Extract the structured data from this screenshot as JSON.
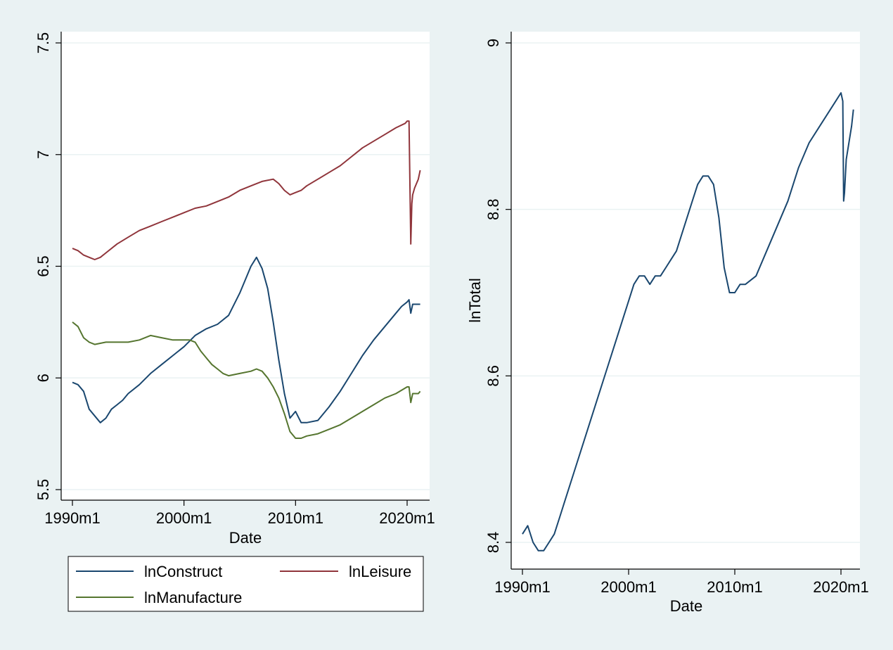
{
  "colors": {
    "background": "#eaf2f3",
    "plot_bg": "#ffffff",
    "grid": "#eaf2f3",
    "lnConstruct": "#1a476f",
    "lnLeisure": "#90353b",
    "lnManufacture": "#55752f"
  },
  "chart_data": [
    {
      "type": "line",
      "title": "",
      "xlabel": "Date",
      "ylabel": "",
      "xlim": [
        1990.0,
        2021.25
      ],
      "ylim": [
        5.5,
        7.5
      ],
      "x_ticks": [
        1990,
        2000,
        2010,
        2020
      ],
      "x_tick_labels": [
        "1990m1",
        "2000m1",
        "2010m1",
        "2020m1"
      ],
      "y_ticks": [
        5.5,
        6,
        6.5,
        7,
        7.5
      ],
      "y_tick_labels": [
        "5.5",
        "6",
        "6.5",
        "7",
        "7.5"
      ],
      "grid": true,
      "legend_position": "bottom",
      "legend": [
        "lnConstruct",
        "lnLeisure",
        "lnManufacture"
      ],
      "series": [
        {
          "name": "lnConstruct",
          "color": "#1a476f",
          "x": [
            1990.0,
            1990.5,
            1991.0,
            1991.5,
            1992.0,
            1992.5,
            1993.0,
            1993.5,
            1994.0,
            1994.5,
            1995.0,
            1996.0,
            1997.0,
            1998.0,
            1999.0,
            2000.0,
            2001.0,
            2002.0,
            2003.0,
            2004.0,
            2005.0,
            2006.0,
            2006.5,
            2007.0,
            2007.5,
            2008.0,
            2008.5,
            2009.0,
            2009.5,
            2010.0,
            2010.5,
            2011.0,
            2012.0,
            2013.0,
            2014.0,
            2015.0,
            2016.0,
            2017.0,
            2018.0,
            2019.0,
            2019.5,
            2020.0,
            2020.17,
            2020.33,
            2020.5,
            2021.0,
            2021.17
          ],
          "values": [
            5.98,
            5.97,
            5.94,
            5.86,
            5.83,
            5.8,
            5.82,
            5.86,
            5.88,
            5.9,
            5.93,
            5.97,
            6.02,
            6.06,
            6.1,
            6.14,
            6.19,
            6.22,
            6.24,
            6.28,
            6.38,
            6.5,
            6.54,
            6.49,
            6.4,
            6.25,
            6.08,
            5.93,
            5.82,
            5.85,
            5.8,
            5.8,
            5.81,
            5.87,
            5.94,
            6.02,
            6.1,
            6.17,
            6.23,
            6.29,
            6.32,
            6.34,
            6.35,
            6.29,
            6.33,
            6.33,
            6.33
          ]
        },
        {
          "name": "lnLeisure",
          "color": "#90353b",
          "x": [
            1990.0,
            1990.5,
            1991.0,
            1991.5,
            1992.0,
            1992.5,
            1993.0,
            1994.0,
            1995.0,
            1996.0,
            1997.0,
            1998.0,
            1999.0,
            2000.0,
            2001.0,
            2002.0,
            2003.0,
            2004.0,
            2005.0,
            2006.0,
            2007.0,
            2008.0,
            2008.5,
            2009.0,
            2009.5,
            2010.0,
            2010.5,
            2011.0,
            2012.0,
            2013.0,
            2014.0,
            2015.0,
            2016.0,
            2017.0,
            2018.0,
            2019.0,
            2019.83,
            2020.0,
            2020.17,
            2020.33,
            2020.42,
            2020.5,
            2020.67,
            2021.0,
            2021.17
          ],
          "values": [
            6.58,
            6.57,
            6.55,
            6.54,
            6.53,
            6.54,
            6.56,
            6.6,
            6.63,
            6.66,
            6.68,
            6.7,
            6.72,
            6.74,
            6.76,
            6.77,
            6.79,
            6.81,
            6.84,
            6.86,
            6.88,
            6.89,
            6.87,
            6.84,
            6.82,
            6.83,
            6.84,
            6.86,
            6.89,
            6.92,
            6.95,
            6.99,
            7.03,
            7.06,
            7.09,
            7.12,
            7.14,
            7.15,
            7.15,
            6.6,
            6.78,
            6.82,
            6.85,
            6.89,
            6.93
          ]
        },
        {
          "name": "lnManufacture",
          "color": "#55752f",
          "x": [
            1990.0,
            1990.5,
            1991.0,
            1991.5,
            1992.0,
            1993.0,
            1994.0,
            1995.0,
            1996.0,
            1997.0,
            1998.0,
            1999.0,
            2000.0,
            2000.5,
            2001.0,
            2001.5,
            2002.0,
            2002.5,
            2003.0,
            2003.5,
            2004.0,
            2005.0,
            2006.0,
            2006.5,
            2007.0,
            2007.5,
            2008.0,
            2008.5,
            2009.0,
            2009.5,
            2010.0,
            2010.5,
            2011.0,
            2012.0,
            2013.0,
            2014.0,
            2015.0,
            2016.0,
            2017.0,
            2018.0,
            2019.0,
            2020.0,
            2020.17,
            2020.33,
            2020.5,
            2021.0,
            2021.17
          ],
          "values": [
            6.25,
            6.23,
            6.18,
            6.16,
            6.15,
            6.16,
            6.16,
            6.16,
            6.17,
            6.19,
            6.18,
            6.17,
            6.17,
            6.17,
            6.16,
            6.12,
            6.09,
            6.06,
            6.04,
            6.02,
            6.01,
            6.02,
            6.03,
            6.04,
            6.03,
            6.0,
            5.96,
            5.91,
            5.84,
            5.76,
            5.73,
            5.73,
            5.74,
            5.75,
            5.77,
            5.79,
            5.82,
            5.85,
            5.88,
            5.91,
            5.93,
            5.96,
            5.96,
            5.89,
            5.93,
            5.93,
            5.94
          ]
        }
      ]
    },
    {
      "type": "line",
      "title": "",
      "xlabel": "Date",
      "ylabel": "lnTotal",
      "xlim": [
        1990.0,
        2021.25
      ],
      "ylim": [
        8.4,
        9.0
      ],
      "x_ticks": [
        1990,
        2000,
        2010,
        2020
      ],
      "x_tick_labels": [
        "1990m1",
        "2000m1",
        "2010m1",
        "2020m1"
      ],
      "y_ticks": [
        8.4,
        8.6,
        8.8,
        9.0
      ],
      "y_tick_labels": [
        "8.4",
        "8.6",
        "8.8",
        "9"
      ],
      "grid": true,
      "series": [
        {
          "name": "lnTotal",
          "color": "#1a476f",
          "x": [
            1990.0,
            1990.5,
            1991.0,
            1991.5,
            1992.0,
            1992.5,
            1993.0,
            1993.5,
            1994.0,
            1995.0,
            1996.0,
            1997.0,
            1998.0,
            1999.0,
            2000.0,
            2000.5,
            2001.0,
            2001.5,
            2002.0,
            2002.5,
            2003.0,
            2003.5,
            2004.0,
            2004.5,
            2005.0,
            2006.0,
            2006.5,
            2007.0,
            2007.5,
            2008.0,
            2008.5,
            2009.0,
            2009.5,
            2010.0,
            2010.5,
            2011.0,
            2012.0,
            2013.0,
            2014.0,
            2015.0,
            2016.0,
            2017.0,
            2018.0,
            2019.0,
            2019.5,
            2020.0,
            2020.17,
            2020.25,
            2020.33,
            2020.5,
            2020.75,
            2021.0,
            2021.17
          ],
          "values": [
            8.41,
            8.42,
            8.4,
            8.39,
            8.39,
            8.4,
            8.41,
            8.43,
            8.45,
            8.49,
            8.53,
            8.57,
            8.61,
            8.65,
            8.69,
            8.71,
            8.72,
            8.72,
            8.71,
            8.72,
            8.72,
            8.73,
            8.74,
            8.75,
            8.77,
            8.81,
            8.83,
            8.84,
            8.84,
            8.83,
            8.79,
            8.73,
            8.7,
            8.7,
            8.71,
            8.71,
            8.72,
            8.75,
            8.78,
            8.81,
            8.85,
            8.88,
            8.9,
            8.92,
            8.93,
            8.94,
            8.93,
            8.81,
            8.82,
            8.86,
            8.88,
            8.9,
            8.92
          ]
        }
      ]
    }
  ]
}
